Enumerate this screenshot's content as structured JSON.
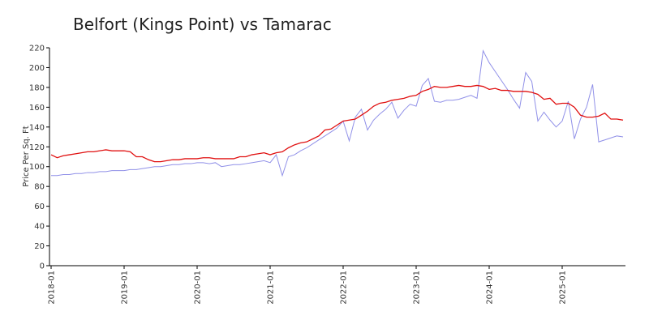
{
  "chart_data": {
    "type": "line",
    "title": "Belfort (Kings Point) vs Tamarac",
    "y_label": "Price Per Sq. Ft",
    "categories": [
      "2018-01",
      null,
      null,
      null,
      null,
      null,
      null,
      null,
      null,
      null,
      null,
      null,
      "2019-01",
      null,
      null,
      null,
      null,
      null,
      null,
      null,
      null,
      null,
      null,
      null,
      "2020-01",
      null,
      null,
      null,
      null,
      null,
      null,
      null,
      null,
      null,
      null,
      null,
      "2021-01",
      null,
      null,
      null,
      null,
      null,
      null,
      null,
      null,
      null,
      null,
      null,
      "2022-01",
      null,
      null,
      null,
      null,
      null,
      null,
      null,
      null,
      null,
      null,
      null,
      "2023-01",
      null,
      null,
      null,
      null,
      null,
      null,
      null,
      null,
      null,
      null,
      null,
      "2024-01",
      null,
      null,
      null,
      null,
      null,
      null,
      null,
      null,
      null,
      null,
      null,
      "2025-01",
      null,
      null,
      null,
      null,
      null,
      null,
      null,
      null,
      null,
      null
    ],
    "series": [
      {
        "color": "#e01010",
        "values": [
          112,
          109,
          111,
          112,
          113,
          114,
          115,
          115,
          116,
          117,
          116,
          116,
          116,
          115,
          110,
          110,
          107,
          105,
          105,
          106,
          107,
          107,
          108,
          108,
          108,
          109,
          109,
          108,
          108,
          108,
          108,
          110,
          110,
          112,
          113,
          114,
          112,
          114,
          115,
          119,
          122,
          124,
          125,
          128,
          131,
          137,
          138,
          142,
          146,
          147,
          148,
          152,
          156,
          161,
          164,
          165,
          167,
          168,
          169,
          171,
          172,
          176,
          178,
          181,
          180,
          180,
          181,
          182,
          181,
          181,
          182,
          181,
          178,
          179,
          177,
          177,
          176,
          176,
          176,
          175,
          173,
          168,
          169,
          163,
          164,
          164,
          160,
          152,
          150,
          150,
          151,
          154,
          148,
          148,
          147
        ]
      },
      {
        "color": "#9090e8",
        "values": [
          91,
          91,
          92,
          92,
          93,
          93,
          94,
          94,
          95,
          95,
          96,
          96,
          96,
          97,
          97,
          98,
          99,
          100,
          100,
          101,
          102,
          102,
          103,
          103,
          104,
          104,
          103,
          104,
          100,
          101,
          102,
          102,
          103,
          104,
          105,
          106,
          104,
          112,
          91,
          110,
          112,
          116,
          119,
          123,
          127,
          131,
          135,
          139,
          146,
          126,
          150,
          158,
          137,
          147,
          153,
          158,
          165,
          149,
          157,
          163,
          161,
          182,
          189,
          166,
          165,
          167,
          167,
          168,
          170,
          172,
          169,
          217,
          205,
          196,
          187,
          178,
          168,
          159,
          195,
          186,
          146,
          155,
          147,
          140,
          146,
          166,
          128,
          148,
          160,
          183,
          125,
          127,
          129,
          131,
          130
        ]
      }
    ],
    "ylim": [
      0,
      220
    ],
    "yticks": [
      0,
      20,
      40,
      60,
      80,
      100,
      120,
      140,
      160,
      180,
      200,
      220
    ]
  }
}
